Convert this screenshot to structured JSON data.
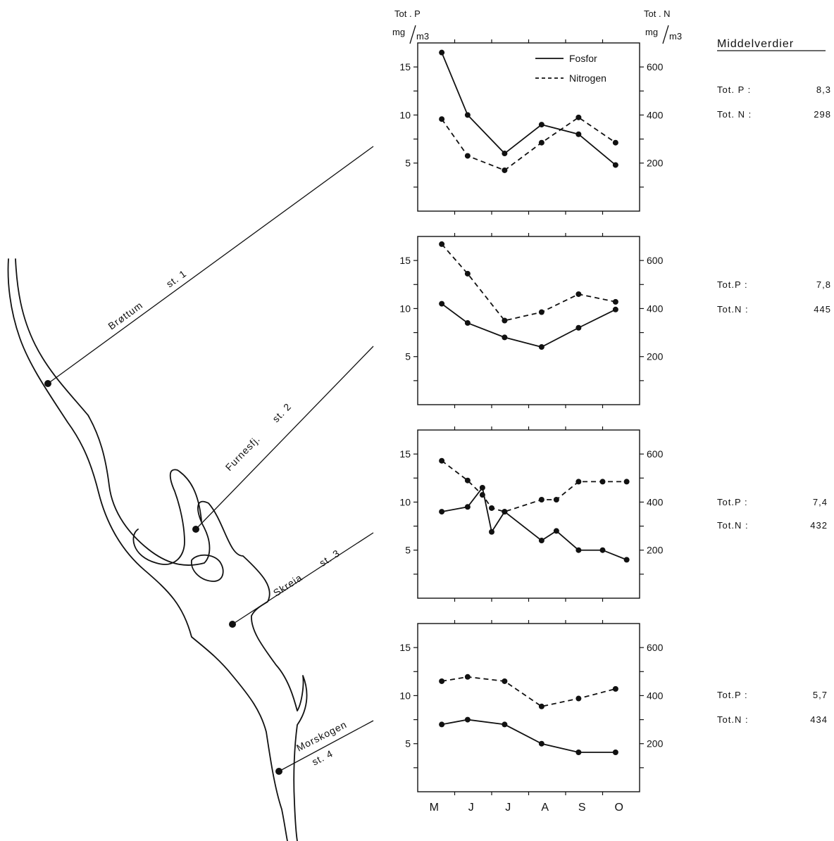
{
  "left_axis": {
    "label_line1": "Tot . P",
    "label_unit": "mg",
    "label_unit2": "m3"
  },
  "right_axis": {
    "label_line1": "Tot . N",
    "label_unit": "mg",
    "label_unit2": "m3"
  },
  "legend": {
    "fosfor": "Fosfor",
    "nitrogen": "Nitrogen"
  },
  "means_title": "Middelverdier",
  "months": [
    "M",
    "J",
    "J",
    "A",
    "S",
    "O"
  ],
  "stations": [
    {
      "name": "Brøttum",
      "code": "st. 1",
      "mean_p_label": "Tot. P   :",
      "mean_p": "8,3",
      "mean_n_label": "Tot. N   :",
      "mean_n": "298"
    },
    {
      "name": "Furnesfj.",
      "code": "st. 2",
      "mean_p_label": "Tot.P   :",
      "mean_p": "7,8",
      "mean_n_label": "Tot.N   :",
      "mean_n": "445"
    },
    {
      "name": "Skreia",
      "code": "st. 3",
      "mean_p_label": "Tot.P  :",
      "mean_p": "7,4",
      "mean_n_label": "Tot.N  :",
      "mean_n": "432"
    },
    {
      "name": "Morskogen",
      "code": "st. 4",
      "mean_p_label": "Tot.P  :",
      "mean_p": "5,7",
      "mean_n_label": "Tot.N  :",
      "mean_n": "434"
    }
  ],
  "chart_data": [
    {
      "type": "line",
      "station": "Brøttum st. 1",
      "x_unit": "month index (M=0 … O=5)",
      "left_ylim": [
        0,
        17.5
      ],
      "right_ylim": [
        0,
        700
      ],
      "left_ticks": [
        5,
        10,
        15
      ],
      "right_ticks": [
        200,
        400,
        600
      ],
      "series": [
        {
          "name": "Fosfor",
          "axis": "left",
          "x": [
            0.15,
            0.85,
            1.85,
            2.85,
            3.85,
            4.85
          ],
          "y": [
            16.5,
            10,
            6,
            9,
            8,
            4.8
          ]
        },
        {
          "name": "Nitrogen",
          "axis": "right",
          "x": [
            0.15,
            0.85,
            1.85,
            2.85,
            3.85,
            4.85
          ],
          "y": [
            383,
            230,
            170,
            285,
            390,
            285
          ]
        }
      ]
    },
    {
      "type": "line",
      "station": "Furnesfj. st. 2",
      "x_unit": "month index (M=0 … O=5)",
      "left_ylim": [
        0,
        17.5
      ],
      "right_ylim": [
        0,
        700
      ],
      "left_ticks": [
        5,
        10,
        15
      ],
      "right_ticks": [
        200,
        400,
        600
      ],
      "series": [
        {
          "name": "Fosfor",
          "axis": "left",
          "x": [
            0.15,
            0.85,
            1.85,
            2.85,
            3.85,
            4.85
          ],
          "y": [
            10.5,
            8.5,
            7,
            6,
            8,
            9.9
          ]
        },
        {
          "name": "Nitrogen",
          "axis": "right",
          "x": [
            0.15,
            0.85,
            1.85,
            2.85,
            3.85,
            4.85
          ],
          "y": [
            668,
            545,
            350,
            385,
            460,
            428
          ]
        }
      ]
    },
    {
      "type": "line",
      "station": "Skreia st. 3",
      "x_unit": "month index (M=0 … O=5)",
      "left_ylim": [
        0,
        17.5
      ],
      "right_ylim": [
        0,
        700
      ],
      "left_ticks": [
        5,
        10,
        15
      ],
      "right_ticks": [
        200,
        400,
        600
      ],
      "series": [
        {
          "name": "Fosfor",
          "axis": "left",
          "x": [
            0.15,
            0.85,
            1.25,
            1.5,
            1.85,
            2.85,
            3.25,
            3.85,
            4.5,
            5.15
          ],
          "y": [
            9,
            9.5,
            11.5,
            6.9,
            9,
            6,
            7,
            5,
            5,
            4
          ]
        },
        {
          "name": "Nitrogen",
          "axis": "right",
          "x": [
            0.15,
            0.85,
            1.25,
            1.5,
            1.85,
            2.85,
            3.25,
            3.85,
            4.5,
            5.15
          ],
          "y": [
            572,
            490,
            430,
            375,
            360,
            410,
            410,
            485,
            485,
            485
          ]
        }
      ]
    },
    {
      "type": "line",
      "station": "Morskogen st. 4",
      "x_unit": "month index (M=0 … O=5)",
      "left_ylim": [
        0,
        17.5
      ],
      "right_ylim": [
        0,
        700
      ],
      "left_ticks": [
        5,
        10,
        15
      ],
      "right_ticks": [
        200,
        400,
        600
      ],
      "series": [
        {
          "name": "Fosfor",
          "axis": "left",
          "x": [
            0.15,
            0.85,
            1.85,
            2.85,
            3.85,
            4.85
          ],
          "y": [
            7,
            7.5,
            7,
            5,
            4.1,
            4.1
          ]
        },
        {
          "name": "Nitrogen",
          "axis": "right",
          "x": [
            0.15,
            0.85,
            1.85,
            2.85,
            3.85,
            4.85
          ],
          "y": [
            460,
            478,
            460,
            355,
            388,
            428
          ]
        }
      ]
    }
  ]
}
